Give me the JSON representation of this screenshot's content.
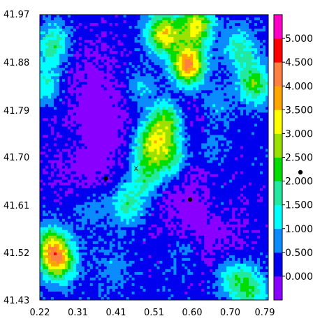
{
  "chart_data": {
    "type": "heatmap",
    "title": "",
    "xlabel": "",
    "ylabel": "",
    "xlim": [
      0.22,
      0.79
    ],
    "ylim": [
      41.43,
      41.97
    ],
    "x_ticks": [
      "0.22",
      "0.31",
      "0.41",
      "0.51",
      "0.60",
      "0.70",
      "0.79"
    ],
    "y_ticks": [
      "41.97",
      "41.88",
      "41.79",
      "41.70",
      "41.61",
      "41.52",
      "41.43"
    ],
    "colorbar": {
      "levels": [
        0,
        0.5,
        1.0,
        1.5,
        2.0,
        2.5,
        3.0,
        3.5,
        4.0,
        4.5,
        5.0,
        5.5
      ],
      "labels": [
        "0.000",
        "0.500",
        "1.000",
        "1.500",
        "2.000",
        "2.500",
        "3.000",
        "3.500",
        "4.000",
        "4.500",
        "5.000"
      ],
      "colors": [
        "#8a00ff",
        "#0000ee",
        "#0a8cff",
        "#00ffff",
        "#22e8a0",
        "#00dd00",
        "#9ae000",
        "#ffff00",
        "#ffa500",
        "#ff8040",
        "#ff0000",
        "#ff00c8"
      ]
    },
    "hotspots": [
      {
        "x": 0.59,
        "y": 41.875,
        "value": 4.6
      },
      {
        "x": 0.53,
        "y": 41.935,
        "value": 3.8
      },
      {
        "x": 0.61,
        "y": 41.95,
        "value": 3.6
      },
      {
        "x": 0.535,
        "y": 41.765,
        "value": 3.2
      },
      {
        "x": 0.495,
        "y": 41.725,
        "value": 3.0
      },
      {
        "x": 0.545,
        "y": 41.7,
        "value": 2.7
      },
      {
        "x": 0.485,
        "y": 41.665,
        "value": 2.3
      },
      {
        "x": 0.44,
        "y": 41.61,
        "value": 2.2
      },
      {
        "x": 0.265,
        "y": 41.505,
        "value": 3.9
      },
      {
        "x": 0.245,
        "y": 41.535,
        "value": 2.6
      },
      {
        "x": 0.255,
        "y": 41.915,
        "value": 2.3
      },
      {
        "x": 0.235,
        "y": 41.84,
        "value": 1.9
      },
      {
        "x": 0.755,
        "y": 41.84,
        "value": 2.8
      },
      {
        "x": 0.72,
        "y": 41.905,
        "value": 2.1
      },
      {
        "x": 0.745,
        "y": 41.45,
        "value": 2.4
      },
      {
        "x": 0.7,
        "y": 41.47,
        "value": 1.9
      },
      {
        "x": 0.66,
        "y": 41.8,
        "value": 1.5
      },
      {
        "x": 0.47,
        "y": 41.83,
        "value": 1.5
      },
      {
        "x": 0.65,
        "y": 41.72,
        "value": 1.3
      },
      {
        "x": 0.35,
        "y": 41.6,
        "value": 1.3
      },
      {
        "x": 0.4,
        "y": 41.49,
        "value": 1.2
      },
      {
        "x": 0.58,
        "y": 41.52,
        "value": 1.2
      },
      {
        "x": 0.67,
        "y": 41.62,
        "value": 1.1
      },
      {
        "x": 0.3,
        "y": 41.73,
        "value": 1.1
      }
    ],
    "background_lows": [
      {
        "x": 0.33,
        "y": 41.7,
        "value": 0.3
      },
      {
        "x": 0.39,
        "y": 41.78,
        "value": 0.4
      },
      {
        "x": 0.57,
        "y": 41.62,
        "value": 0.4
      },
      {
        "x": 0.66,
        "y": 41.56,
        "value": 0.4
      },
      {
        "x": 0.61,
        "y": 41.77,
        "value": 0.45
      },
      {
        "x": 0.34,
        "y": 41.87,
        "value": 0.5
      }
    ],
    "points": [
      {
        "x": 0.385,
        "y": 41.66,
        "marker": "dot"
      },
      {
        "x": 0.595,
        "y": 41.62,
        "marker": "dot"
      },
      {
        "x": 0.46,
        "y": 41.68,
        "marker": "x",
        "label": "x"
      }
    ]
  }
}
